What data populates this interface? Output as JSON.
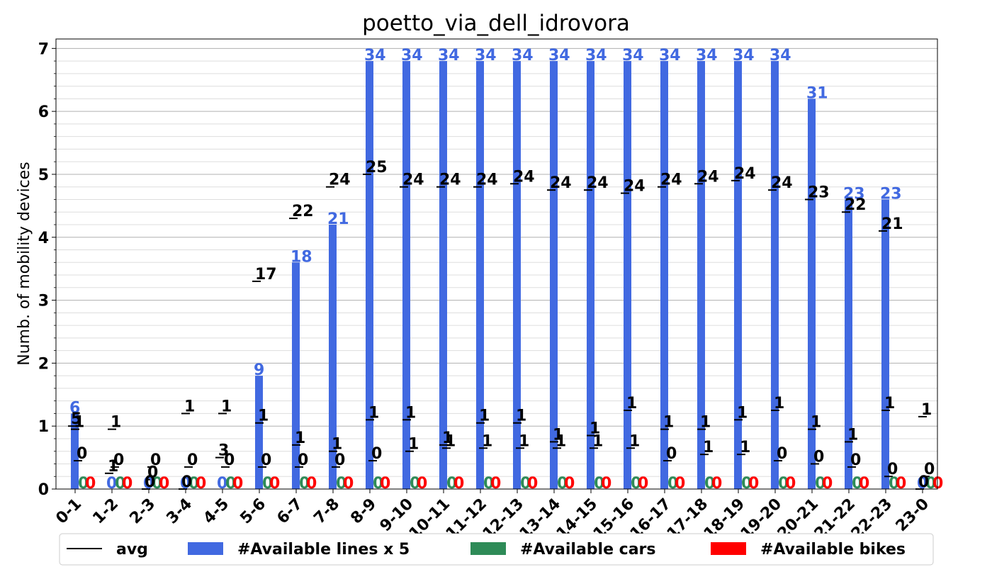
{
  "chart_data": {
    "type": "bar",
    "title": "poetto_via_dell_idrovora",
    "xlabel": "",
    "ylabel": "Numb. of mobility devices",
    "ylim": [
      0,
      7.15
    ],
    "yticks": [
      "0",
      "1",
      "2",
      "3",
      "4",
      "5",
      "6",
      "7"
    ],
    "grid": true,
    "legend_position": "bottom",
    "categories": [
      "0-1",
      "1-2",
      "2-3",
      "3-4",
      "4-5",
      "5-6",
      "6-7",
      "7-8",
      "8-9",
      "9-10",
      "10-11",
      "11-12",
      "12-13",
      "13-14",
      "14-15",
      "15-16",
      "16-17",
      "17-18",
      "18-19",
      "19-20",
      "20-21",
      "21-22",
      "22-23",
      "23-0"
    ],
    "series": [
      {
        "name": "#Available lines x 5",
        "color": "#4169e1",
        "values": [
          1.2,
          0,
          0,
          0,
          0,
          1.8,
          3.6,
          4.2,
          6.8,
          6.8,
          6.8,
          6.8,
          6.8,
          6.8,
          6.8,
          6.8,
          6.8,
          6.8,
          6.8,
          6.8,
          6.2,
          4.6,
          4.6,
          0
        ],
        "labels": [
          "6",
          "0",
          "0",
          "0",
          "0",
          "9",
          "18",
          "21",
          "34",
          "34",
          "34",
          "34",
          "34",
          "34",
          "34",
          "34",
          "34",
          "34",
          "34",
          "34",
          "31",
          "23",
          "23",
          "0"
        ]
      },
      {
        "name": "#Available cars",
        "color": "#2e8b57",
        "values": [
          0,
          0,
          0,
          0,
          0,
          0,
          0,
          0,
          0,
          0,
          0,
          0,
          0,
          0,
          0,
          0,
          0,
          0,
          0,
          0,
          0,
          0,
          0,
          0
        ],
        "labels": [
          "0",
          "0",
          "0",
          "0",
          "0",
          "0",
          "0",
          "0",
          "0",
          "0",
          "0",
          "0",
          "0",
          "0",
          "0",
          "0",
          "0",
          "0",
          "0",
          "0",
          "0",
          "0",
          "0",
          "0"
        ]
      },
      {
        "name": "#Available bikes",
        "color": "#ff0000",
        "values": [
          0,
          0,
          0,
          0,
          0,
          0,
          0,
          0,
          0,
          0,
          0,
          0,
          0,
          0,
          0,
          0,
          0,
          0,
          0,
          0,
          0,
          0,
          0,
          0
        ],
        "labels": [
          "0",
          "0",
          "0",
          "0",
          "0",
          "0",
          "0",
          "0",
          "0",
          "0",
          "0",
          "0",
          "0",
          "0",
          "0",
          "0",
          "0",
          "0",
          "0",
          "0",
          "0",
          "0",
          "0",
          "0"
        ]
      }
    ],
    "avg": {
      "name": "avg",
      "color": "#000000",
      "lines": [
        {
          "values": [
            1.0,
            0.25,
            0,
            0,
            0.5,
            3.3,
            4.3,
            4.8,
            5.0,
            4.8,
            4.8,
            4.8,
            4.85,
            4.75,
            4.75,
            4.7,
            4.8,
            4.85,
            4.9,
            4.75,
            4.6,
            4.4,
            4.1,
            0
          ],
          "labels": [
            "5",
            "1",
            "0",
            "0",
            "3",
            "17",
            "22",
            "24",
            "25",
            "24",
            "24",
            "24",
            "24",
            "24",
            "24",
            "24",
            "24",
            "24",
            "24",
            "24",
            "23",
            "22",
            "21",
            "0"
          ]
        },
        {
          "values": [
            0.95,
            0.95,
            0.15,
            1.2,
            1.2,
            1.05,
            0.7,
            0.6,
            1.1,
            1.1,
            0.7,
            1.05,
            1.05,
            0.75,
            0.85,
            1.25,
            0.95,
            0.95,
            1.1,
            1.25,
            0.95,
            0.75,
            1.25,
            1.15
          ],
          "labels": [
            "1",
            "1",
            "0",
            "1",
            "1",
            "1",
            "1",
            "1",
            "1",
            "1",
            "1",
            "1",
            "1",
            "1",
            "1",
            "1",
            "1",
            "1",
            "1",
            "1",
            "1",
            "1",
            "1",
            "1"
          ]
        },
        {
          "values": [
            0.45,
            0.35,
            0.35,
            0.35,
            0.35,
            0.35,
            0.35,
            0.35,
            0.45,
            0.6,
            0.65,
            0.65,
            0.65,
            0.65,
            0.65,
            0.65,
            0.45,
            0.55,
            0.55,
            0.45,
            0.4,
            0.35,
            0.2,
            0.2
          ],
          "labels": [
            "0",
            "0",
            "0",
            "0",
            "0",
            "0",
            "0",
            "0",
            "0",
            "1",
            "1",
            "1",
            "1",
            "1",
            "1",
            "1",
            "0",
            "1",
            "1",
            "0",
            "0",
            "0",
            "0",
            "0"
          ]
        }
      ]
    }
  }
}
